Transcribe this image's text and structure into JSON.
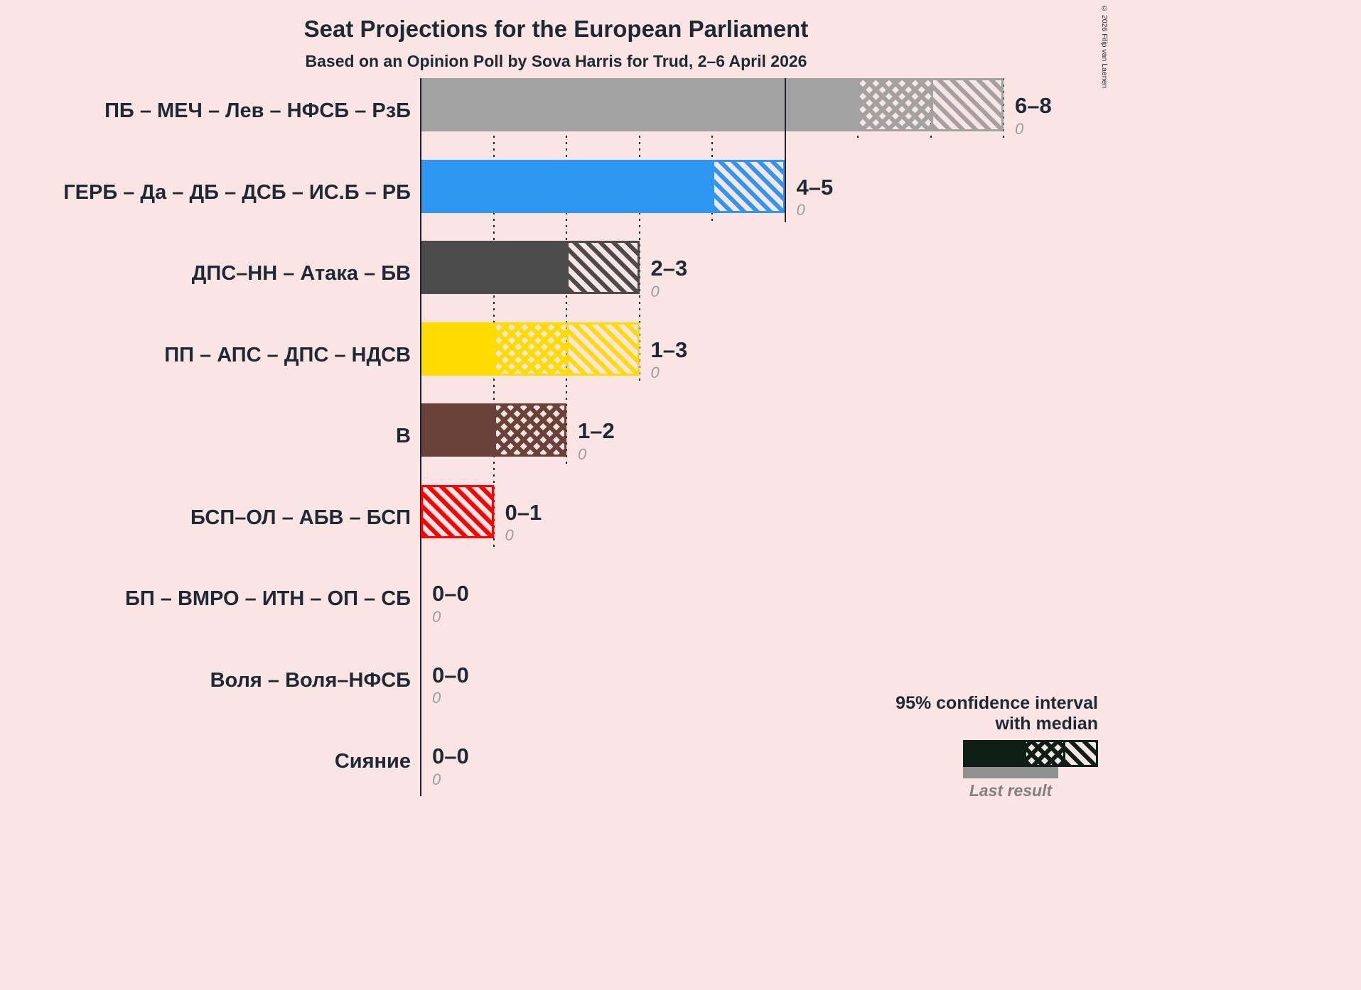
{
  "title": "Seat Projections for the European Parliament",
  "subtitle": "Based on an Opinion Poll by Sova Harris for Trud, 2–6 April 2026",
  "copyright": "© 2026 Filip van Laenen",
  "colors": {
    "background": "#fbe5e4",
    "text": "#1d2935",
    "grid": "#1a2430",
    "last_result_text": "#9c9c9c",
    "legend_sample": "#0e1f18",
    "legend_last_result_bar": "#909090"
  },
  "legend": {
    "ci_line1": "95% confidence interval",
    "ci_line2": "with median",
    "last_result_label": "Last result"
  },
  "chart_data": {
    "type": "bar",
    "orientation": "horizontal",
    "xlim": [
      0,
      8
    ],
    "gridlines": [
      1,
      2,
      3,
      4,
      5,
      6,
      7,
      8
    ],
    "solid_gridline_at": 5,
    "legend_note": "95% confidence interval with median; crosshatch = low to median, diagonal = median to high",
    "rows": [
      {
        "label": "ПБ – МЕЧ – Лев – НФСБ – РзБ",
        "ci_low": 6,
        "median": 7,
        "ci_high": 8,
        "ci_label": "6–8",
        "last_result": 0,
        "last_result_label": "0",
        "color": "#a2a2a2"
      },
      {
        "label": "ГЕРБ – Да – ДБ – ДСБ – ИС.Б – РБ",
        "ci_low": 4,
        "median": 4,
        "ci_high": 5,
        "ci_label": "4–5",
        "last_result": 0,
        "last_result_label": "0",
        "color": "#2e96f3"
      },
      {
        "label": "ДПС–НН – Атака – БВ",
        "ci_low": 2,
        "median": 2,
        "ci_high": 3,
        "ci_label": "2–3",
        "last_result": 0,
        "last_result_label": "0",
        "color": "#4b4b4b"
      },
      {
        "label": "ПП – АПС – ДПС – НДСВ",
        "ci_low": 1,
        "median": 2,
        "ci_high": 3,
        "ci_label": "1–3",
        "last_result": 0,
        "last_result_label": "0",
        "color": "#ffdc00"
      },
      {
        "label": "В",
        "ci_low": 1,
        "median": 2,
        "ci_high": 2,
        "ci_label": "1–2",
        "last_result": 0,
        "last_result_label": "0",
        "color": "#6b4239"
      },
      {
        "label": "БСП–ОЛ – АБВ – БСП",
        "ci_low": 0,
        "median": 0,
        "ci_high": 1,
        "ci_label": "0–1",
        "last_result": 0,
        "last_result_label": "0",
        "color": "#ff0000"
      },
      {
        "label": "БП – ВМРО – ИТН – ОП – СБ",
        "ci_low": 0,
        "median": 0,
        "ci_high": 0,
        "ci_label": "0–0",
        "last_result": 0,
        "last_result_label": "0",
        "color": "#000000"
      },
      {
        "label": "Воля – Воля–НФСБ",
        "ci_low": 0,
        "median": 0,
        "ci_high": 0,
        "ci_label": "0–0",
        "last_result": 0,
        "last_result_label": "0",
        "color": "#000000"
      },
      {
        "label": "Сияние",
        "ci_low": 0,
        "median": 0,
        "ci_high": 0,
        "ci_label": "0–0",
        "last_result": 0,
        "last_result_label": "0",
        "color": "#000000"
      }
    ]
  }
}
